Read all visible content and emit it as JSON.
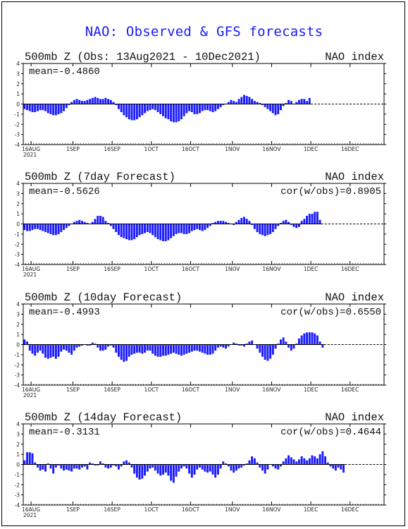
{
  "title": "NAO: Observed & GFS forecasts",
  "colors": {
    "bar": "#1a1aff",
    "title": "#1a1aff",
    "axis": "#000000"
  },
  "x_ticks": [
    "16AUG",
    "1SEP",
    "16SEP",
    "1OCT",
    "16OCT",
    "1NOV",
    "16NOV",
    "1DEC",
    "16DEC"
  ],
  "x_year": "2021",
  "chart_data": [
    {
      "type": "bar",
      "title": "500mb Z (Obs: 13Aug2021 - 10Dec2021)",
      "right_label": "NAO index",
      "mean_text": "mean=-0.4860",
      "cor_text": "",
      "ylim": [
        -4,
        4
      ],
      "yticks": [
        4,
        3,
        2,
        1,
        0,
        -1,
        -2,
        -3,
        -4
      ],
      "x_start": "13Aug2021",
      "x_end": "28Dec2021",
      "values": [
        -0.5,
        -0.6,
        -0.7,
        -0.8,
        -0.8,
        -0.7,
        -0.6,
        -0.6,
        -0.7,
        -0.9,
        -1.0,
        -1.1,
        -1.1,
        -1.0,
        -0.9,
        -0.7,
        -0.4,
        -0.1,
        0.2,
        0.4,
        0.5,
        0.4,
        0.3,
        0.3,
        0.4,
        0.5,
        0.6,
        0.7,
        0.6,
        0.5,
        0.5,
        0.6,
        0.5,
        0.4,
        0.2,
        -0.1,
        -0.5,
        -0.8,
        -1.1,
        -1.3,
        -1.5,
        -1.6,
        -1.6,
        -1.5,
        -1.3,
        -1.1,
        -0.9,
        -0.7,
        -0.6,
        -0.5,
        -0.6,
        -0.8,
        -1.0,
        -1.2,
        -1.4,
        -1.5,
        -1.7,
        -1.8,
        -1.8,
        -1.7,
        -1.5,
        -1.2,
        -0.9,
        -0.7,
        -0.8,
        -1.0,
        -1.0,
        -0.9,
        -0.7,
        -0.6,
        -0.6,
        -0.7,
        -0.8,
        -0.7,
        -0.5,
        -0.3,
        -0.1,
        0.0,
        0.2,
        0.4,
        0.3,
        0.2,
        0.5,
        0.7,
        0.9,
        0.8,
        0.7,
        0.5,
        0.3,
        0.2,
        0.1,
        -0.1,
        -0.3,
        -0.5,
        -0.7,
        -0.9,
        -1.1,
        -1.0,
        -0.6,
        -0.2,
        0.1,
        0.4,
        0.3,
        0.0,
        0.2,
        0.4,
        0.5,
        0.5,
        0.3,
        0.6,
        0,
        0,
        0,
        0,
        0,
        0,
        0,
        0,
        0,
        0,
        0,
        0,
        0,
        0,
        0,
        0,
        0,
        0,
        0,
        0,
        0,
        0,
        0
      ]
    },
    {
      "type": "bar",
      "title": "500mb Z (7day Forecast)",
      "right_label": "NAO index",
      "mean_text": "mean=-0.5626",
      "cor_text": "cor(w/obs)=0.8905",
      "ylim": [
        -4,
        4
      ],
      "yticks": [
        4,
        3,
        2,
        1,
        0,
        -1,
        -2,
        -3,
        -4
      ],
      "x_start": "13Aug2021",
      "x_end": "28Dec2021",
      "values": [
        -0.6,
        -0.7,
        -0.7,
        -0.6,
        -0.5,
        -0.5,
        -0.6,
        -0.7,
        -0.8,
        -0.9,
        -1.0,
        -1.1,
        -1.1,
        -1.0,
        -0.8,
        -0.6,
        -0.4,
        -0.2,
        0.0,
        0.2,
        0.3,
        0.4,
        0.3,
        0.2,
        0.1,
        0.0,
        0.2,
        0.5,
        0.8,
        0.8,
        0.7,
        0.3,
        0.1,
        -0.2,
        -0.5,
        -0.8,
        -1.1,
        -1.3,
        -1.4,
        -1.5,
        -1.6,
        -1.6,
        -1.5,
        -1.3,
        -1.1,
        -1.0,
        -0.9,
        -0.8,
        -0.9,
        -1.1,
        -1.3,
        -1.5,
        -1.6,
        -1.7,
        -1.7,
        -1.6,
        -1.4,
        -1.2,
        -1.0,
        -0.9,
        -0.9,
        -1.0,
        -1.0,
        -0.9,
        -0.7,
        -0.6,
        -0.5,
        -0.6,
        -0.7,
        -0.6,
        -0.4,
        -0.2,
        0.1,
        0.2,
        0.3,
        0.3,
        0.3,
        0.2,
        0.1,
        0.0,
        -0.1,
        0.2,
        0.4,
        0.6,
        0.7,
        0.5,
        0.3,
        -0.1,
        -0.5,
        -0.8,
        -1.0,
        -1.1,
        -1.2,
        -1.1,
        -1.0,
        -0.8,
        -0.5,
        -0.2,
        0.1,
        0.3,
        0.4,
        0.2,
        -0.1,
        -0.3,
        -0.4,
        -0.3,
        0.3,
        0.5,
        0.8,
        1.0,
        1.0,
        1.2,
        1.2,
        0.4,
        0,
        0,
        0,
        0,
        0,
        0,
        0,
        0,
        0,
        0,
        0,
        0,
        0,
        0,
        0,
        0,
        0,
        0,
        0,
        0,
        0
      ]
    },
    {
      "type": "bar",
      "title": "500mb Z (10day Forecast)",
      "right_label": "NAO index",
      "mean_text": "mean=-0.4993",
      "cor_text": "cor(w/obs)=0.6550",
      "ylim": [
        -4,
        4
      ],
      "yticks": [
        4,
        3,
        2,
        1,
        0,
        -1,
        -2,
        -3,
        -4
      ],
      "x_start": "13Aug2021",
      "x_end": "28Dec2021",
      "values": [
        0.5,
        0.3,
        -0.6,
        -0.9,
        -1.1,
        -0.8,
        -0.6,
        -0.9,
        -1.3,
        -1.4,
        -1.3,
        -1.2,
        -1.4,
        -1.2,
        -0.7,
        -0.5,
        -0.6,
        -0.8,
        -1.0,
        -0.6,
        -0.3,
        -0.2,
        -0.1,
        0.0,
        -0.1,
        -0.1,
        0.2,
        0.1,
        -0.3,
        -0.6,
        -0.6,
        -0.5,
        -0.2,
        -0.1,
        -0.3,
        -0.8,
        -1.2,
        -1.5,
        -1.7,
        -1.6,
        -1.2,
        -1.0,
        -0.9,
        -0.8,
        -0.8,
        -0.9,
        -0.8,
        -0.6,
        -0.6,
        -0.9,
        -1.1,
        -1.2,
        -1.2,
        -1.1,
        -1.1,
        -1.0,
        -0.9,
        -0.8,
        -0.9,
        -1.0,
        -1.1,
        -1.0,
        -0.9,
        -0.8,
        -0.7,
        -0.6,
        -0.6,
        -0.7,
        -0.8,
        -0.9,
        -1.0,
        -1.0,
        -0.9,
        -0.6,
        -0.3,
        -0.2,
        -0.3,
        -0.4,
        -0.2,
        0.0,
        0.2,
        0.1,
        -0.1,
        -0.1,
        -0.2,
        0.1,
        0.3,
        0.4,
        0.0,
        -0.4,
        -0.8,
        -1.2,
        -1.5,
        -1.6,
        -1.4,
        -1.0,
        -0.4,
        0.1,
        0.5,
        0.7,
        0.3,
        -0.3,
        -0.6,
        -0.4,
        0.1,
        0.6,
        0.9,
        1.1,
        1.2,
        1.2,
        1.2,
        1.1,
        0.9,
        0.3,
        -0.3,
        0,
        0,
        0,
        0,
        0,
        0,
        0,
        0,
        0,
        0,
        0,
        0,
        0,
        0,
        0,
        0,
        0,
        0,
        0
      ]
    },
    {
      "type": "bar",
      "title": "500mb Z (14day Forecast)",
      "right_label": "NAO index",
      "mean_text": "mean=-0.3131",
      "cor_text": "cor(w/obs)=0.4644",
      "ylim": [
        -4,
        4
      ],
      "yticks": [
        4,
        3,
        2,
        1,
        0,
        -1,
        -2,
        -3,
        -4
      ],
      "x_start": "13Aug2021",
      "x_end": "28Dec2021",
      "values": [
        0.4,
        1.2,
        1.2,
        1.1,
        0.2,
        -0.3,
        -0.6,
        -0.5,
        -0.7,
        0.1,
        -0.4,
        -0.9,
        -0.3,
        -0.1,
        -0.4,
        -0.6,
        -0.5,
        -0.6,
        -0.7,
        -0.4,
        -0.4,
        -0.5,
        -0.3,
        -0.2,
        -0.5,
        0.2,
        0.1,
        -0.1,
        -0.1,
        0.3,
        0.1,
        -0.3,
        -0.4,
        -0.3,
        -0.1,
        -0.2,
        -0.5,
        -0.2,
        0.3,
        0.4,
        0.2,
        -0.3,
        -0.9,
        -1.3,
        -1.5,
        -1.4,
        -1.1,
        -0.7,
        -0.4,
        -0.3,
        -0.6,
        -0.9,
        -1.1,
        -1.0,
        -0.8,
        -1.1,
        -1.6,
        -1.8,
        -1.2,
        -0.7,
        -0.4,
        -0.2,
        -0.4,
        -0.9,
        -1.3,
        -1.0,
        -0.5,
        -0.3,
        -0.5,
        -0.7,
        -0.8,
        -0.7,
        -1.0,
        -1.3,
        -1.0,
        -0.4,
        0.3,
        0.1,
        -0.2,
        -0.6,
        -0.8,
        -0.6,
        -0.4,
        -0.3,
        -0.1,
        0.1,
        0.4,
        0.8,
        0.6,
        0.2,
        -0.3,
        -0.6,
        -0.9,
        -0.5,
        0.0,
        -0.2,
        -0.4,
        -0.5,
        -0.2,
        0.3,
        0.6,
        0.9,
        0.7,
        0.5,
        0.3,
        0.5,
        0.8,
        0.6,
        0.4,
        0.6,
        0.9,
        0.8,
        0.6,
        1.0,
        1.3,
        0.8,
        0.2,
        -0.2,
        -0.4,
        -0.6,
        -0.3,
        -0.5,
        -0.8,
        0,
        0,
        0,
        0,
        0,
        0,
        0,
        0,
        0,
        0,
        0,
        0,
        0
      ]
    }
  ]
}
